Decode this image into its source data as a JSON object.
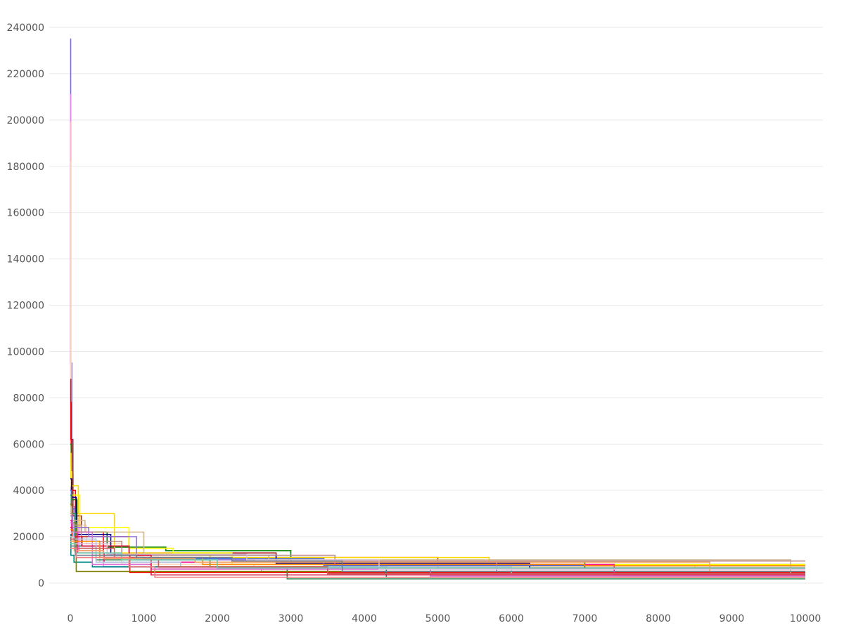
{
  "chart_data": {
    "type": "line",
    "title": "",
    "xlabel": "",
    "ylabel": "",
    "xlim": [
      0,
      10000
    ],
    "ylim": [
      0,
      240000
    ],
    "x_ticks": [
      0,
      1000,
      2000,
      3000,
      4000,
      5000,
      6000,
      7000,
      8000,
      9000,
      10000
    ],
    "y_ticks": [
      0,
      20000,
      40000,
      60000,
      80000,
      100000,
      120000,
      140000,
      160000,
      180000,
      200000,
      220000,
      240000
    ],
    "x_tick_labels": [
      "0",
      "1000",
      "2000",
      "3000",
      "4000",
      "5000",
      "6000",
      "7000",
      "8000",
      "9000",
      "10000"
    ],
    "y_tick_labels": [
      "0",
      "20000",
      "40000",
      "60000",
      "80000",
      "100000",
      "120000",
      "140000",
      "160000",
      "180000",
      "200000",
      "220000",
      "240000"
    ],
    "grid": {
      "horizontal": true,
      "vertical": false
    },
    "legend": "none",
    "step": true,
    "series": [
      {
        "color": "#7b68ee",
        "points": [
          [
            0,
            235000
          ],
          [
            5,
            95000
          ],
          [
            20,
            33000
          ],
          [
            60,
            19000
          ],
          [
            150,
            16000
          ],
          [
            300,
            12000
          ],
          [
            700,
            9000
          ],
          [
            2800,
            8500
          ],
          [
            6200,
            8000
          ],
          [
            10000,
            8000
          ]
        ]
      },
      {
        "color": "#ee82ee",
        "points": [
          [
            0,
            211000
          ],
          [
            6,
            60000
          ],
          [
            25,
            30000
          ],
          [
            120,
            14000
          ],
          [
            450,
            7000
          ],
          [
            2600,
            5000
          ],
          [
            10000,
            5000
          ]
        ]
      },
      {
        "color": "#ffb6c1",
        "points": [
          [
            0,
            199000
          ],
          [
            8,
            52000
          ],
          [
            30,
            28000
          ],
          [
            110,
            18000
          ],
          [
            400,
            9000
          ],
          [
            1200,
            6500
          ],
          [
            4000,
            6000
          ],
          [
            10000,
            6000
          ]
        ]
      },
      {
        "color": "#ffdab9",
        "points": [
          [
            0,
            182000
          ],
          [
            10,
            47000
          ],
          [
            40,
            25000
          ],
          [
            220,
            17000
          ],
          [
            700,
            8000
          ],
          [
            2500,
            7000
          ],
          [
            10000,
            7000
          ]
        ]
      },
      {
        "color": "#b22222",
        "points": [
          [
            0,
            88000
          ],
          [
            7,
            62000
          ],
          [
            35,
            29000
          ],
          [
            150,
            20000
          ],
          [
            800,
            13000
          ],
          [
            2800,
            11000
          ],
          [
            5000,
            6000
          ],
          [
            10000,
            6000
          ]
        ]
      },
      {
        "color": "#ff0000",
        "points": [
          [
            0,
            78000
          ],
          [
            12,
            40000
          ],
          [
            70,
            22000
          ],
          [
            450,
            12000
          ],
          [
            810,
            4500
          ],
          [
            10000,
            4500
          ]
        ]
      },
      {
        "color": "#008000",
        "points": [
          [
            0,
            60000
          ],
          [
            15,
            36000
          ],
          [
            90,
            22000
          ],
          [
            500,
            15500
          ],
          [
            1300,
            14000
          ],
          [
            3000,
            9000
          ],
          [
            7000,
            6000
          ],
          [
            10000,
            6000
          ]
        ]
      },
      {
        "color": "#ffd700",
        "points": [
          [
            0,
            56000
          ],
          [
            10,
            42000
          ],
          [
            110,
            30000
          ],
          [
            600,
            13000
          ],
          [
            1900,
            11000
          ],
          [
            5700,
            7500
          ],
          [
            8500,
            6500
          ],
          [
            10000,
            6500
          ]
        ]
      },
      {
        "color": "#ffff00",
        "points": [
          [
            0,
            48000
          ],
          [
            20,
            38000
          ],
          [
            130,
            24000
          ],
          [
            800,
            15000
          ],
          [
            1400,
            13000
          ],
          [
            2200,
            8000
          ],
          [
            10000,
            8000
          ]
        ]
      },
      {
        "color": "#00008b",
        "points": [
          [
            0,
            45000
          ],
          [
            18,
            37000
          ],
          [
            80,
            21000
          ],
          [
            550,
            12000
          ],
          [
            2800,
            8500
          ],
          [
            6250,
            6500
          ],
          [
            10000,
            6500
          ]
        ]
      },
      {
        "color": "#4169e1",
        "points": [
          [
            0,
            40000
          ],
          [
            14,
            32000
          ],
          [
            60,
            18000
          ],
          [
            400,
            11000
          ],
          [
            1000,
            10500
          ],
          [
            3450,
            7500
          ],
          [
            10000,
            7500
          ]
        ]
      },
      {
        "color": "#2e8b57",
        "points": [
          [
            0,
            38000
          ],
          [
            12,
            30000
          ],
          [
            70,
            16000
          ],
          [
            350,
            10000
          ],
          [
            1900,
            7000
          ],
          [
            2950,
            1800
          ],
          [
            10000,
            1800
          ]
        ]
      },
      {
        "color": "#008b8b",
        "points": [
          [
            0,
            21000
          ],
          [
            8,
            12000
          ],
          [
            50,
            9000
          ],
          [
            300,
            7000
          ],
          [
            4300,
            2500
          ],
          [
            10000,
            2500
          ]
        ]
      },
      {
        "color": "#808000",
        "points": [
          [
            0,
            34000
          ],
          [
            20,
            26000
          ],
          [
            80,
            5000
          ],
          [
            10000,
            5000
          ]
        ]
      },
      {
        "color": "#d2b48c",
        "points": [
          [
            0,
            33000
          ],
          [
            15,
            27000
          ],
          [
            200,
            22000
          ],
          [
            1000,
            12000
          ],
          [
            2700,
            10000
          ],
          [
            9800,
            4000
          ],
          [
            10000,
            4000
          ]
        ]
      },
      {
        "color": "#bc8f8f",
        "points": [
          [
            0,
            30000
          ],
          [
            25,
            25000
          ],
          [
            150,
            18000
          ],
          [
            700,
            12000
          ],
          [
            3600,
            9500
          ],
          [
            10000,
            9500
          ]
        ]
      },
      {
        "color": "#9370db",
        "points": [
          [
            0,
            29000
          ],
          [
            30,
            24000
          ],
          [
            250,
            20000
          ],
          [
            900,
            10000
          ],
          [
            2500,
            9000
          ],
          [
            5800,
            5000
          ],
          [
            10000,
            5000
          ]
        ]
      },
      {
        "color": "#ff1493",
        "points": [
          [
            0,
            27000
          ],
          [
            18,
            22000
          ],
          [
            100,
            13000
          ],
          [
            460,
            9000
          ],
          [
            3600,
            8000
          ],
          [
            7400,
            3500
          ],
          [
            10000,
            3500
          ]
        ]
      },
      {
        "color": "#da70d6",
        "points": [
          [
            0,
            26000
          ],
          [
            35,
            22000
          ],
          [
            300,
            8000
          ],
          [
            1100,
            6000
          ],
          [
            4900,
            3000
          ],
          [
            10000,
            3000
          ]
        ]
      },
      {
        "color": "#dc143c",
        "points": [
          [
            0,
            24000
          ],
          [
            22,
            20000
          ],
          [
            160,
            16000
          ],
          [
            800,
            12000
          ],
          [
            1100,
            3500
          ],
          [
            10000,
            3500
          ]
        ]
      },
      {
        "color": "#ff8c00",
        "points": [
          [
            0,
            23000
          ],
          [
            40,
            18000
          ],
          [
            400,
            11000
          ],
          [
            1800,
            8000
          ],
          [
            7000,
            7500
          ],
          [
            10000,
            7500
          ]
        ]
      },
      {
        "color": "#b0c4de",
        "points": [
          [
            0,
            22000
          ],
          [
            45,
            19000
          ],
          [
            350,
            9000
          ],
          [
            1500,
            7000
          ],
          [
            6000,
            4000
          ],
          [
            10000,
            4000
          ]
        ]
      },
      {
        "color": "#d8bfd8",
        "points": [
          [
            0,
            20000
          ],
          [
            50,
            17000
          ],
          [
            500,
            12500
          ],
          [
            2400,
            10000
          ],
          [
            4200,
            6000
          ],
          [
            10000,
            6000
          ]
        ]
      },
      {
        "color": "#cd5c5c",
        "points": [
          [
            0,
            19000
          ],
          [
            60,
            15000
          ],
          [
            600,
            11000
          ],
          [
            1200,
            7000
          ],
          [
            3500,
            4000
          ],
          [
            10000,
            4000
          ]
        ]
      },
      {
        "color": "#f4a460",
        "points": [
          [
            0,
            18000
          ],
          [
            55,
            14000
          ],
          [
            450,
            10500
          ],
          [
            1700,
            9000
          ],
          [
            8700,
            5000
          ],
          [
            10000,
            5000
          ]
        ]
      },
      {
        "color": "#66cdaa",
        "points": [
          [
            0,
            17000
          ],
          [
            65,
            13000
          ],
          [
            700,
            10000
          ],
          [
            2000,
            6500
          ],
          [
            10000,
            6500
          ]
        ]
      },
      {
        "color": "#708090",
        "points": [
          [
            0,
            16000
          ],
          [
            70,
            12000
          ],
          [
            900,
            11000
          ],
          [
            2200,
            9500
          ],
          [
            3700,
            5000
          ],
          [
            10000,
            5000
          ]
        ]
      },
      {
        "color": "#f08080",
        "points": [
          [
            0,
            15000
          ],
          [
            80,
            11000
          ],
          [
            800,
            7000
          ],
          [
            1150,
            2500
          ],
          [
            10000,
            2500
          ]
        ]
      }
    ]
  }
}
